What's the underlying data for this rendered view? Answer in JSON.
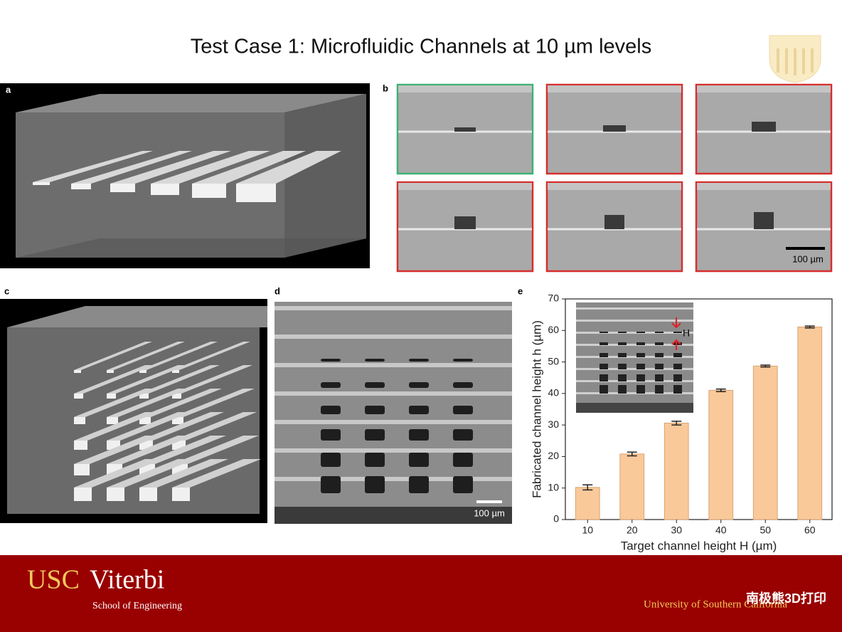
{
  "header": {
    "title": "Test Case 1: Microfluidic Channels at 10 µm levels"
  },
  "panels": {
    "a": "a",
    "b": "b",
    "c": "c",
    "d": "d",
    "e": "e"
  },
  "scale_bar_b": "100 µm",
  "scale_bar_d": "100 µm",
  "inset_label": "H",
  "chart_data": {
    "type": "bar",
    "categories": [
      "10",
      "20",
      "30",
      "40",
      "50",
      "60"
    ],
    "values": [
      10.2,
      20.8,
      30.6,
      41.0,
      48.7,
      61.1
    ],
    "errors": [
      0.8,
      0.6,
      0.6,
      0.4,
      0.3,
      0.3
    ],
    "color": "#f9c99a",
    "x_label": "Target channel height H (µm)",
    "y_label": "Fabricated channel height h (µm)",
    "ylim": [
      0,
      70
    ],
    "yticks": [
      0,
      10,
      20,
      30,
      40,
      50,
      60,
      70
    ]
  },
  "footer": {
    "brand_usc": "USC",
    "brand_viterbi": "Viterbi",
    "school": "School of Engineering",
    "university": "University of Southern California",
    "watermark": "南极熊3D打印"
  }
}
